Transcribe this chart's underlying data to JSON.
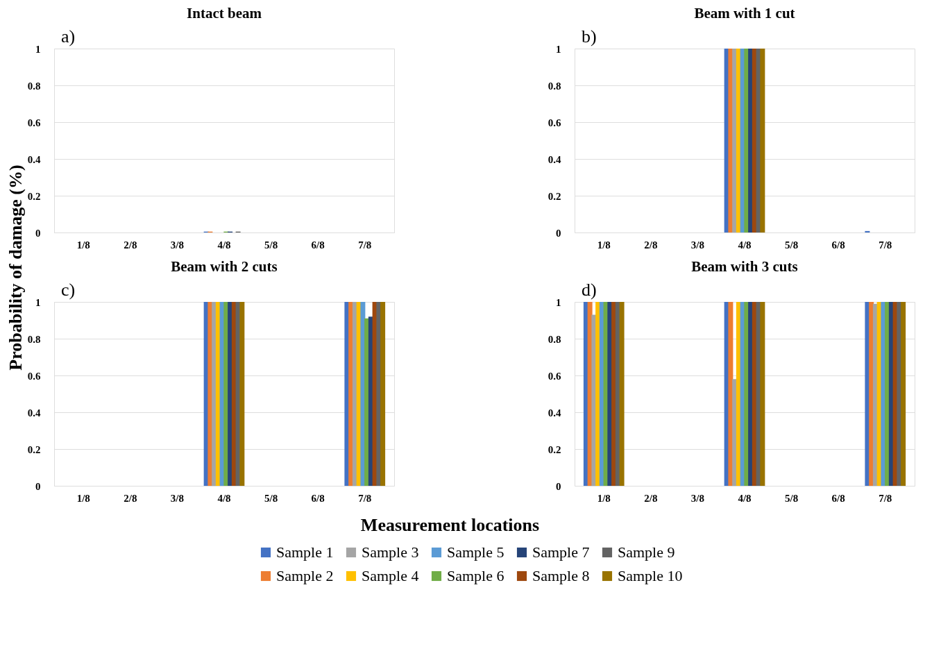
{
  "chart_data": [
    {
      "type": "bar",
      "title": "Intact beam",
      "annotations": [
        "a)"
      ],
      "ylabel": "Probability of damage (%)",
      "categories": [
        "1/8",
        "2/8",
        "3/8",
        "4/8",
        "5/8",
        "6/8",
        "7/8"
      ],
      "ylim": [
        0,
        1
      ],
      "yticks": [
        0,
        0.2,
        0.4,
        0.6,
        0.8,
        1
      ],
      "grid": "y",
      "legend": "bottom",
      "series": [
        {
          "name": "Sample 1",
          "color": "#4472c4",
          "values": [
            0,
            0,
            0,
            0.005,
            0,
            0,
            0
          ]
        },
        {
          "name": "Sample 2",
          "color": "#ed7d31",
          "values": [
            0,
            0,
            0,
            0.005,
            0,
            0,
            0
          ]
        },
        {
          "name": "Sample 3",
          "color": "#a5a5a5",
          "values": [
            0,
            0,
            0,
            0,
            0,
            0,
            0
          ]
        },
        {
          "name": "Sample 4",
          "color": "#ffc000",
          "values": [
            0,
            0,
            0,
            0,
            0,
            0,
            0
          ]
        },
        {
          "name": "Sample 5",
          "color": "#5b9bd5",
          "values": [
            0,
            0,
            0,
            0,
            0,
            0,
            0
          ]
        },
        {
          "name": "Sample 6",
          "color": "#70ad47",
          "values": [
            0,
            0,
            0,
            0.005,
            0,
            0,
            0
          ]
        },
        {
          "name": "Sample 7",
          "color": "#264478",
          "values": [
            0,
            0,
            0,
            0.005,
            0,
            0,
            0
          ]
        },
        {
          "name": "Sample 8",
          "color": "#9e480e",
          "values": [
            0,
            0,
            0,
            0,
            0,
            0,
            0
          ]
        },
        {
          "name": "Sample 9",
          "color": "#636363",
          "values": [
            0,
            0,
            0,
            0.005,
            0,
            0,
            0
          ]
        },
        {
          "name": "Sample 10",
          "color": "#997300",
          "values": [
            0,
            0,
            0,
            0,
            0,
            0,
            0
          ]
        }
      ]
    },
    {
      "type": "bar",
      "title": "Beam with 1 cut",
      "annotations": [
        "b)"
      ],
      "categories": [
        "1/8",
        "2/8",
        "3/8",
        "4/8",
        "5/8",
        "6/8",
        "7/8"
      ],
      "ylim": [
        0,
        1
      ],
      "yticks": [
        0,
        0.2,
        0.4,
        0.6,
        0.8,
        1
      ],
      "grid": "y",
      "series": [
        {
          "color": "#4472c4",
          "values": [
            0,
            0,
            0,
            1,
            0,
            0,
            0.008
          ]
        },
        {
          "color": "#ed7d31",
          "values": [
            0,
            0,
            0,
            1,
            0,
            0,
            0
          ]
        },
        {
          "color": "#a5a5a5",
          "values": [
            0,
            0,
            0,
            1,
            0,
            0,
            0
          ]
        },
        {
          "color": "#ffc000",
          "values": [
            0,
            0,
            0,
            1,
            0,
            0,
            0
          ]
        },
        {
          "color": "#5b9bd5",
          "values": [
            0,
            0,
            0,
            1,
            0,
            0,
            0
          ]
        },
        {
          "color": "#70ad47",
          "values": [
            0,
            0,
            0,
            1,
            0,
            0,
            0
          ]
        },
        {
          "color": "#264478",
          "values": [
            0,
            0,
            0,
            1,
            0,
            0,
            0
          ]
        },
        {
          "color": "#9e480e",
          "values": [
            0,
            0,
            0,
            1,
            0,
            0,
            0
          ]
        },
        {
          "color": "#636363",
          "values": [
            0,
            0,
            0,
            1,
            0,
            0,
            0
          ]
        },
        {
          "color": "#997300",
          "values": [
            0,
            0,
            0,
            1,
            0,
            0,
            0
          ]
        }
      ]
    },
    {
      "type": "bar",
      "title": "Beam with 2 cuts",
      "annotations": [
        "c)"
      ],
      "xlabel": "Measurement locations",
      "categories": [
        "1/8",
        "2/8",
        "3/8",
        "4/8",
        "5/8",
        "6/8",
        "7/8"
      ],
      "ylim": [
        0,
        1
      ],
      "yticks": [
        0,
        0.2,
        0.4,
        0.6,
        0.8,
        1
      ],
      "grid": "y",
      "series": [
        {
          "color": "#4472c4",
          "values": [
            0,
            0,
            0,
            1,
            0,
            0,
            1
          ]
        },
        {
          "color": "#ed7d31",
          "values": [
            0,
            0,
            0,
            1,
            0,
            0,
            1
          ]
        },
        {
          "color": "#a5a5a5",
          "values": [
            0,
            0,
            0,
            1,
            0,
            0,
            1
          ]
        },
        {
          "color": "#ffc000",
          "values": [
            0,
            0,
            0,
            1,
            0,
            0,
            1
          ]
        },
        {
          "color": "#5b9bd5",
          "values": [
            0,
            0,
            0,
            1,
            0,
            0,
            1
          ]
        },
        {
          "color": "#70ad47",
          "values": [
            0,
            0,
            0,
            1,
            0,
            0,
            0.91
          ]
        },
        {
          "color": "#264478",
          "values": [
            0,
            0,
            0,
            1,
            0,
            0,
            0.92
          ]
        },
        {
          "color": "#9e480e",
          "values": [
            0,
            0,
            0,
            1,
            0,
            0,
            1
          ]
        },
        {
          "color": "#636363",
          "values": [
            0,
            0,
            0,
            1,
            0,
            0,
            1
          ]
        },
        {
          "color": "#997300",
          "values": [
            0,
            0,
            0,
            1,
            0,
            0,
            1
          ]
        }
      ]
    },
    {
      "type": "bar",
      "title": "Beam with 3 cuts",
      "annotations": [
        "d)"
      ],
      "categories": [
        "1/8",
        "2/8",
        "3/8",
        "4/8",
        "5/8",
        "6/8",
        "7/8"
      ],
      "ylim": [
        0,
        1
      ],
      "yticks": [
        0,
        0.2,
        0.4,
        0.6,
        0.8,
        1
      ],
      "grid": "y",
      "series": [
        {
          "color": "#4472c4",
          "values": [
            1,
            0,
            0,
            1,
            0,
            0,
            1
          ]
        },
        {
          "color": "#ed7d31",
          "values": [
            1,
            0,
            0,
            1,
            0,
            0,
            1
          ]
        },
        {
          "color": "#a5a5a5",
          "values": [
            0.93,
            0,
            0,
            0.58,
            0,
            0,
            0.99
          ]
        },
        {
          "color": "#ffc000",
          "values": [
            1,
            0,
            0,
            1,
            0,
            0,
            1
          ]
        },
        {
          "color": "#5b9bd5",
          "values": [
            1,
            0,
            0,
            1,
            0,
            0,
            1
          ]
        },
        {
          "color": "#70ad47",
          "values": [
            1,
            0,
            0,
            1,
            0,
            0,
            1
          ]
        },
        {
          "color": "#264478",
          "values": [
            1,
            0,
            0,
            1,
            0,
            0,
            1
          ]
        },
        {
          "color": "#9e480e",
          "values": [
            1,
            0,
            0,
            1,
            0,
            0,
            1
          ]
        },
        {
          "color": "#636363",
          "values": [
            1,
            0,
            0,
            1,
            0,
            0,
            1
          ]
        },
        {
          "color": "#997300",
          "values": [
            1,
            0,
            0,
            1,
            0,
            0,
            1
          ]
        }
      ]
    }
  ]
}
